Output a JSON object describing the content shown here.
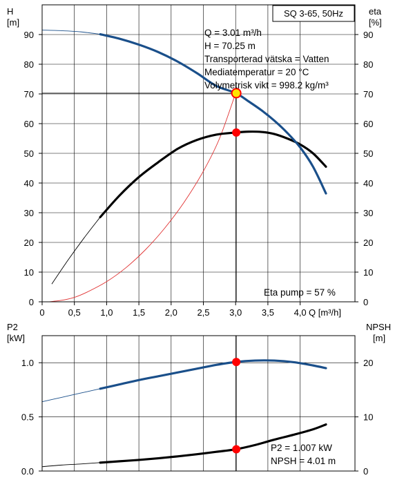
{
  "colors": {
    "head_curve": "#1a4f8a",
    "eta_curve": "#000000",
    "system_curve": "#e03030",
    "marker_red": "#ff0000",
    "marker_yellow": "#ffe400",
    "grid": "#000000",
    "background": "#ffffff"
  },
  "chart_data": [
    {
      "type": "line",
      "title": "SQ 3-65, 50Hz",
      "xlabel": "Q [m³/h]",
      "ylabel_left": {
        "line1": "H",
        "line2": "[m]"
      },
      "ylabel_right": {
        "line1": "eta",
        "line2": "[%]"
      },
      "xlim": [
        0,
        4.85
      ],
      "ylim": [
        0,
        100
      ],
      "x_ticks": [
        "0",
        "0,5",
        "1,0",
        "1,5",
        "2,0",
        "2,5",
        "3,0",
        "3,5",
        "4,0"
      ],
      "y_ticks": [
        "0",
        "10",
        "20",
        "30",
        "40",
        "50",
        "60",
        "70",
        "80",
        "90"
      ],
      "grid": true,
      "series": [
        {
          "name": "H",
          "thin_range": [
            0,
            0.9
          ],
          "x": [
            0,
            0.3,
            0.6,
            0.9,
            1.2,
            1.5,
            1.8,
            2.1,
            2.4,
            2.7,
            3.0,
            3.2,
            3.4,
            3.6,
            3.8,
            4.0,
            4.2,
            4.4
          ],
          "values": [
            91.5,
            91.3,
            90.9,
            90.1,
            88.6,
            86.6,
            84.1,
            80.9,
            77.0,
            72.7,
            70.3,
            67.5,
            64.5,
            61.0,
            56.9,
            52.0,
            45.5,
            36.5
          ]
        },
        {
          "name": "eta",
          "thin_range": [
            0.15,
            0.9
          ],
          "x": [
            0.15,
            0.4,
            0.65,
            0.9,
            1.2,
            1.5,
            1.8,
            2.1,
            2.4,
            2.7,
            3.0,
            3.2,
            3.4,
            3.6,
            3.8,
            4.0,
            4.2,
            4.4
          ],
          "values": [
            6,
            14,
            21.5,
            28.5,
            35.8,
            42,
            47,
            51.5,
            54.5,
            56.3,
            57,
            57.3,
            57.2,
            56.5,
            55,
            53,
            50,
            45.5
          ]
        },
        {
          "name": "system",
          "x": [
            0.1,
            0.3,
            0.5,
            0.7,
            1.0,
            1.3,
            1.6,
            1.9,
            2.2,
            2.5,
            2.75,
            3.0
          ],
          "values": [
            0,
            0.5,
            1.5,
            3.3,
            6.8,
            11.5,
            17.5,
            24.8,
            33.5,
            44,
            55,
            70.25
          ]
        }
      ],
      "duty_point": {
        "x": 3.01,
        "y": 70.25
      },
      "eta_point": {
        "x": 3.01,
        "y": 57
      },
      "annotations": {
        "lines": [
          "Q = 3.01 m³/h",
          "H = 70.25 m",
          "Transporterad vätska = Vatten",
          "Mediatemperatur = 20 °C",
          "Volymetrisk vikt = 998.2 kg/m³"
        ],
        "eta_pump": "Eta pump = 57 %"
      }
    },
    {
      "type": "line",
      "ylabel_left": {
        "line1": "P2",
        "line2": "[kW]"
      },
      "ylabel_right": {
        "line1": "NPSH",
        "line2": "[m]"
      },
      "xlim": [
        0,
        4.85
      ],
      "ylim_left": [
        0,
        1.25
      ],
      "ylim_right": [
        0,
        25
      ],
      "y_ticks_left": [
        "0.0",
        "0.5",
        "1.0"
      ],
      "y_ticks_right": [
        "0",
        "10",
        "20"
      ],
      "grid": true,
      "series": [
        {
          "name": "P2",
          "thin_range": [
            0,
            0.9
          ],
          "x": [
            0,
            0.3,
            0.6,
            0.9,
            1.2,
            1.5,
            1.8,
            2.1,
            2.4,
            2.7,
            3.0,
            3.3,
            3.6,
            3.9,
            4.2,
            4.4
          ],
          "values": [
            0.64,
            0.68,
            0.72,
            0.76,
            0.8,
            0.84,
            0.875,
            0.91,
            0.945,
            0.98,
            1.007,
            1.02,
            1.02,
            1.005,
            0.975,
            0.95
          ]
        },
        {
          "name": "NPSH",
          "thin_range": [
            0,
            0.9
          ],
          "x": [
            0,
            0.3,
            0.6,
            0.9,
            1.2,
            1.5,
            1.8,
            2.1,
            2.4,
            2.7,
            3.0,
            3.3,
            3.6,
            3.9,
            4.2,
            4.4
          ],
          "values": [
            0.8,
            1.1,
            1.3,
            1.55,
            1.8,
            2.05,
            2.35,
            2.7,
            3.1,
            3.55,
            4.01,
            4.8,
            5.8,
            6.7,
            7.7,
            8.6
          ]
        }
      ],
      "p2_point": {
        "x": 3.01,
        "y": 1.007
      },
      "npsh_point": {
        "x": 3.01,
        "y": 4.01
      },
      "annotations": {
        "p2": "P2 = 1.007 kW",
        "npsh": "NPSH = 4.01 m"
      }
    }
  ]
}
